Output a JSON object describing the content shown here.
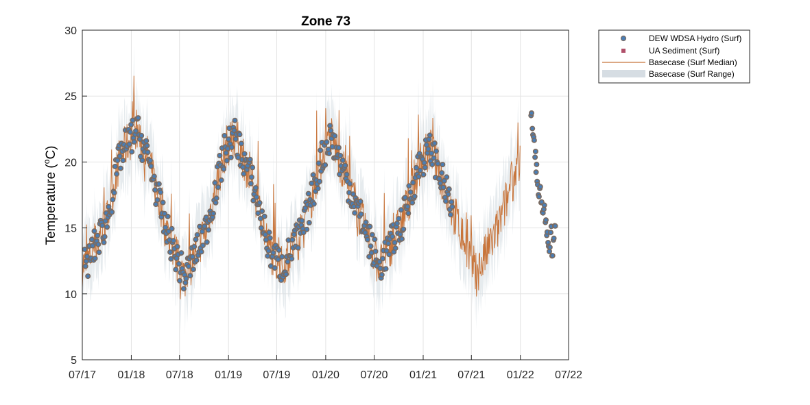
{
  "chart_data": {
    "type": "line",
    "title": "Zone 73",
    "xlabel": "",
    "ylabel": "Temperature (°C)",
    "ylabel_parts": {
      "main": "Temperature (",
      "sup": "o",
      "unit": "C)"
    },
    "xlim": [
      "2017-07-01",
      "2022-07-01"
    ],
    "ylim": [
      5,
      30
    ],
    "x_ticks": [
      "07/17",
      "01/18",
      "07/18",
      "01/19",
      "07/19",
      "01/20",
      "07/20",
      "01/21",
      "07/21",
      "01/22",
      "07/22"
    ],
    "y_ticks": [
      5,
      10,
      15,
      20,
      25,
      30
    ],
    "grid": true,
    "legend_position": "outside-top-right",
    "seasonal_anchors": [
      {
        "date": "2017-07-15",
        "value": 12.2
      },
      {
        "date": "2017-10-01",
        "value": 15.5
      },
      {
        "date": "2017-11-20",
        "value": 20.5
      },
      {
        "date": "2018-01-20",
        "value": 22.5
      },
      {
        "date": "2018-03-10",
        "value": 20.0
      },
      {
        "date": "2018-05-10",
        "value": 15.0
      },
      {
        "date": "2018-07-20",
        "value": 11.2
      },
      {
        "date": "2018-10-10",
        "value": 15.0
      },
      {
        "date": "2018-12-20",
        "value": 21.0
      },
      {
        "date": "2019-01-25",
        "value": 22.0
      },
      {
        "date": "2019-04-01",
        "value": 18.5
      },
      {
        "date": "2019-06-01",
        "value": 13.5
      },
      {
        "date": "2019-07-20",
        "value": 12.0
      },
      {
        "date": "2019-10-10",
        "value": 15.0
      },
      {
        "date": "2019-12-20",
        "value": 20.5
      },
      {
        "date": "2020-01-20",
        "value": 22.0
      },
      {
        "date": "2020-04-10",
        "value": 17.5
      },
      {
        "date": "2020-07-20",
        "value": 12.0
      },
      {
        "date": "2020-10-15",
        "value": 15.5
      },
      {
        "date": "2020-12-20",
        "value": 20.0
      },
      {
        "date": "2021-02-01",
        "value": 21.0
      },
      {
        "date": "2021-04-10",
        "value": 17.0
      },
      {
        "date": "2021-07-20",
        "value": 11.5
      },
      {
        "date": "2021-10-10",
        "value": 15.0
      },
      {
        "date": "2021-12-31",
        "value": 20.5
      }
    ],
    "series": [
      {
        "name": "DEW WDSA Hydro (Surf)",
        "style": "circle-marker",
        "color": "#4a7eb5",
        "edge_color": "#7a6a60",
        "date_range": [
          "2017-07-10",
          "2021-04-20"
        ],
        "extra_points": [
          {
            "date": "2022-02-10",
            "value": 23.4
          },
          {
            "date": "2022-02-15",
            "value": 22.2
          },
          {
            "date": "2022-02-20",
            "value": 21.5
          },
          {
            "date": "2022-02-25",
            "value": 20.5
          },
          {
            "date": "2022-03-01",
            "value": 19.5
          },
          {
            "date": "2022-03-05",
            "value": 18.3
          },
          {
            "date": "2022-03-10",
            "value": 17.6
          },
          {
            "date": "2022-03-15",
            "value": 18.0
          },
          {
            "date": "2022-03-20",
            "value": 16.8
          },
          {
            "date": "2022-03-25",
            "value": 16.2
          },
          {
            "date": "2022-03-30",
            "value": 16.8
          },
          {
            "date": "2022-04-05",
            "value": 15.8
          },
          {
            "date": "2022-04-10",
            "value": 14.6
          },
          {
            "date": "2022-04-15",
            "value": 14.0
          },
          {
            "date": "2022-04-20",
            "value": 13.6
          },
          {
            "date": "2022-04-25",
            "value": 14.8
          },
          {
            "date": "2022-04-30",
            "value": 13.2
          },
          {
            "date": "2022-05-05",
            "value": 14.4
          },
          {
            "date": "2022-05-10",
            "value": 15.0
          }
        ]
      },
      {
        "name": "UA Sediment (Surf)",
        "style": "square-marker",
        "color": "#b0506a"
      },
      {
        "name": "Basecase (Surf Median)",
        "style": "line",
        "color": "#c8743a",
        "date_range": [
          "2017-07-01",
          "2021-12-31"
        ]
      },
      {
        "name": "Basecase (Surf Range)",
        "style": "band",
        "color": "#d6dde3",
        "date_range": [
          "2017-07-01",
          "2021-12-31"
        ]
      }
    ]
  }
}
